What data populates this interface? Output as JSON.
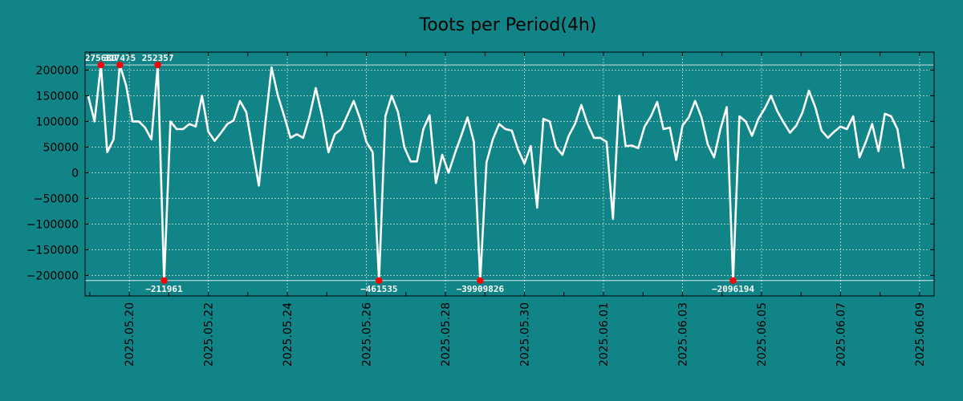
{
  "chart_data": {
    "type": "line",
    "title": "Toots per Period(4h)",
    "xlabel": "",
    "ylabel": "",
    "ylim": [
      -240000,
      235000
    ],
    "xlim": [
      -0.5,
      133.8
    ],
    "grid": true,
    "clip_limits": [
      210000,
      -210000
    ],
    "colors": {
      "background": "#108487",
      "plot_area": "#108487",
      "line": "#ffffff",
      "marker": "#ff0000",
      "grid": "#c9d8d8",
      "axis": "#000000"
    },
    "y_ticks": [
      {
        "value": 200000,
        "label": "200000"
      },
      {
        "value": 150000,
        "label": "150000"
      },
      {
        "value": 100000,
        "label": "100000"
      },
      {
        "value": 50000,
        "label": "50000"
      },
      {
        "value": 0,
        "label": "0"
      },
      {
        "value": -50000,
        "label": "−50000"
      },
      {
        "value": -100000,
        "label": "−100000"
      },
      {
        "value": -150000,
        "label": "−150000"
      },
      {
        "value": -200000,
        "label": "−200000"
      }
    ],
    "x_ticks": [
      {
        "index": 6.5,
        "label": "2025.05.20"
      },
      {
        "index": 19,
        "label": "2025.05.22"
      },
      {
        "index": 31.5,
        "label": "2025.05.24"
      },
      {
        "index": 44,
        "label": "2025.05.26"
      },
      {
        "index": 56.5,
        "label": "2025.05.28"
      },
      {
        "index": 69,
        "label": "2025.05.30"
      },
      {
        "index": 81.5,
        "label": "2025.06.01"
      },
      {
        "index": 94,
        "label": "2025.06.03"
      },
      {
        "index": 106.5,
        "label": "2025.06.05"
      },
      {
        "index": 119,
        "label": "2025.06.07"
      },
      {
        "index": 131.5,
        "label": "2025.06.09"
      }
    ],
    "minor_x_ticks": [
      0.25,
      6.5,
      12.75,
      19,
      25.25,
      31.5,
      37.75,
      44,
      50.25,
      56.5,
      62.75,
      69,
      75.25,
      81.5,
      87.75,
      94,
      100.25,
      106.5,
      112.75,
      119,
      125.25,
      131.5
    ],
    "series": [
      {
        "name": "toots",
        "values": [
          150000,
          100000,
          210000,
          40000,
          65000,
          210000,
          170000,
          100000,
          100000,
          88000,
          65000,
          210000,
          -210000,
          100000,
          85000,
          85000,
          95000,
          90000,
          150000,
          80000,
          62000,
          78000,
          95000,
          102000,
          140000,
          118000,
          45000,
          -25000,
          95000,
          205000,
          150000,
          110000,
          68000,
          75000,
          68000,
          110000,
          165000,
          110000,
          40000,
          75000,
          85000,
          112000,
          140000,
          105000,
          60000,
          40000,
          -210000,
          110000,
          150000,
          118000,
          50000,
          22000,
          22000,
          85000,
          112000,
          -20000,
          35000,
          0,
          38000,
          72000,
          108000,
          60000,
          -210000,
          20000,
          65000,
          95000,
          85000,
          82000,
          45000,
          18000,
          52000,
          -68000,
          105000,
          100000,
          50000,
          35000,
          72000,
          95000,
          132000,
          95000,
          68000,
          68000,
          60000,
          -90000,
          150000,
          52000,
          53000,
          48000,
          90000,
          110000,
          138000,
          85000,
          88000,
          25000,
          92000,
          108000,
          140000,
          108000,
          55000,
          30000,
          85000,
          128000,
          -210000,
          110000,
          100000,
          72000,
          105000,
          125000,
          150000,
          120000,
          98000,
          78000,
          92000,
          118000,
          160000,
          128000,
          82000,
          68000,
          80000,
          90000,
          85000,
          110000,
          30000,
          60000,
          95000,
          42000,
          115000,
          110000,
          85000,
          8000
        ]
      }
    ],
    "annotations": [
      {
        "index": 2,
        "value": 210000,
        "label": "275680",
        "position": "above"
      },
      {
        "index": 5,
        "value": 210000,
        "label": "317475",
        "position": "above"
      },
      {
        "index": 11,
        "value": 210000,
        "label": "252357",
        "position": "above"
      },
      {
        "index": 12,
        "value": -210000,
        "label": "−211961",
        "position": "below"
      },
      {
        "index": 46,
        "value": -210000,
        "label": "−461535",
        "position": "below"
      },
      {
        "index": 62,
        "value": -210000,
        "label": "−39909826",
        "position": "below"
      },
      {
        "index": 102,
        "value": -210000,
        "label": "−2096194",
        "position": "below"
      }
    ]
  }
}
